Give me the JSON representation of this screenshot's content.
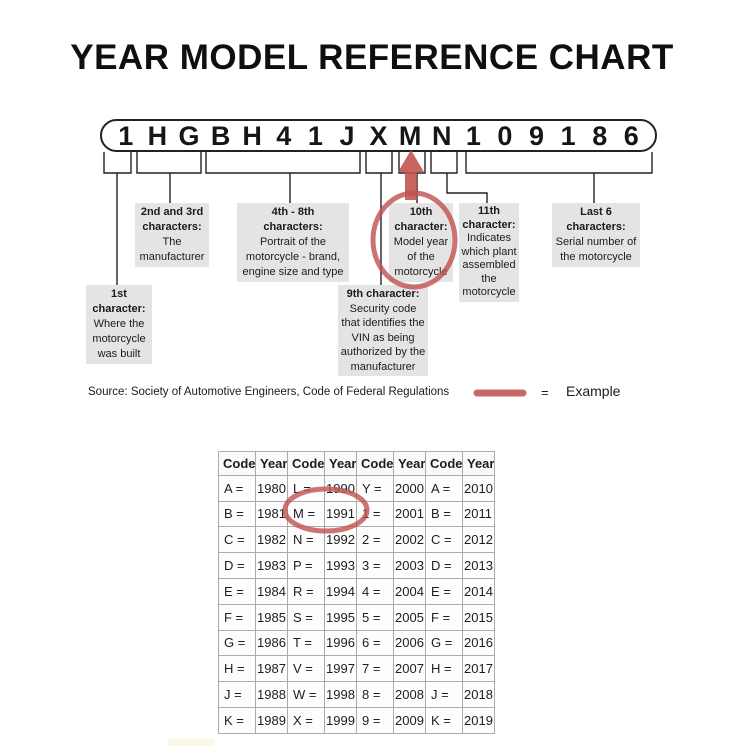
{
  "page_title": "YEAR MODEL REFERENCE CHART",
  "vin": {
    "characters": [
      "1",
      "H",
      "G",
      "B",
      "H",
      "4",
      "1",
      "J",
      "X",
      "M",
      "N",
      "1",
      "0",
      "9",
      "1",
      "8",
      "6"
    ]
  },
  "callouts": [
    {
      "id": "1st",
      "bold_lines": [
        "1st",
        "character:"
      ],
      "lines": [
        "Where the",
        "motorcycle",
        "was built"
      ]
    },
    {
      "id": "2nd3rd",
      "bold_lines": [
        "2nd and 3rd",
        "characters:"
      ],
      "lines": [
        "The",
        "manufacturer"
      ]
    },
    {
      "id": "4th8th",
      "bold_lines": [
        "4th - 8th",
        "characters:"
      ],
      "lines": [
        "Portrait of the",
        "motorcycle - brand,",
        "engine size and type"
      ]
    },
    {
      "id": "9th",
      "bold_lines": [
        "9th character:"
      ],
      "lines": [
        "Security code",
        "that identifies the",
        "VIN as being",
        "authorized by the",
        "manufacturer"
      ]
    },
    {
      "id": "10th",
      "bold_lines": [
        "10th",
        "character:"
      ],
      "lines": [
        "Model year",
        "of the",
        "motorcycle"
      ]
    },
    {
      "id": "11th",
      "bold_lines": [
        "11th",
        "character:"
      ],
      "lines": [
        "Indicates",
        "which plant",
        "assembled",
        "the",
        "motorcycle"
      ]
    },
    {
      "id": "last6",
      "bold_lines": [
        "Last 6",
        "characters:"
      ],
      "lines": [
        "Serial number of",
        "the motorcycle"
      ]
    }
  ],
  "legend": {
    "source_line": "Source:  Society of Automotive Engineers, Code of Federal Regulations",
    "equals": "=",
    "example_label": "Example"
  },
  "colors": {
    "accent_red": "#c0504d",
    "line_black": "#222222",
    "callout_gray": "#e4e4e4"
  },
  "year_table": {
    "headers": [
      "Code",
      "Year",
      "Code",
      "Year",
      "Code",
      "Year",
      "Code",
      "Year"
    ],
    "rows": [
      [
        "A =",
        "1980",
        "L =",
        "1990",
        "Y =",
        "2000",
        "A =",
        "2010"
      ],
      [
        "B =",
        "1981",
        "M =",
        "1991",
        "1 =",
        "2001",
        "B =",
        "2011"
      ],
      [
        "C =",
        "1982",
        "N =",
        "1992",
        "2 =",
        "2002",
        "C =",
        "2012"
      ],
      [
        "D =",
        "1983",
        "P =",
        "1993",
        "3 =",
        "2003",
        "D =",
        "2013"
      ],
      [
        "E =",
        "1984",
        "R =",
        "1994",
        "4 =",
        "2004",
        "E =",
        "2014"
      ],
      [
        "F =",
        "1985",
        "S =",
        "1995",
        "5 =",
        "2005",
        "F =",
        "2015"
      ],
      [
        "G =",
        "1986",
        "T =",
        "1996",
        "6 =",
        "2006",
        "G =",
        "2016"
      ],
      [
        "H =",
        "1987",
        "V =",
        "1997",
        "7 =",
        "2007",
        "H =",
        "2017"
      ],
      [
        "J =",
        "1988",
        "W =",
        "1998",
        "8 =",
        "2008",
        "J =",
        "2018"
      ],
      [
        "K =",
        "1989",
        "X =",
        "1999",
        "9 =",
        "2009",
        "K =",
        "2019"
      ]
    ],
    "highlighted_cell": "M = 1991"
  }
}
